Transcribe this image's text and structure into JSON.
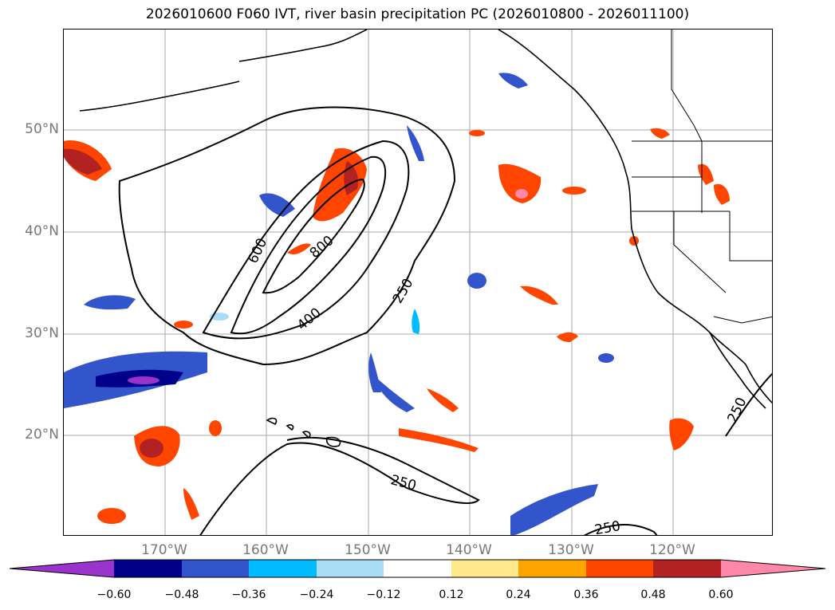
{
  "title": "2026010600 F060 IVT, river basin precipitation PC (2026010800 - 2026011100)",
  "map": {
    "lat_labels": [
      "50°N",
      "40°N",
      "30°N",
      "20°N"
    ],
    "lon_labels": [
      "170°W",
      "160°W",
      "150°W",
      "140°W",
      "130°W",
      "120°W"
    ],
    "contour_labels": [
      "600",
      "800",
      "400",
      "250",
      "250",
      "250",
      "250"
    ],
    "gridlines": true
  },
  "colorbar": {
    "tick_labels": [
      "−0.60",
      "−0.48",
      "−0.36",
      "−0.24",
      "−0.12",
      "0.12",
      "0.24",
      "0.36",
      "0.48",
      "0.60"
    ],
    "colors": [
      "#9933cc",
      "#00008b",
      "#3355cc",
      "#00bbff",
      "#aaddf5",
      "#ffffff",
      "#ffe88a",
      "#ffa500",
      "#ff4500",
      "#b22222",
      "#ff88aa"
    ]
  }
}
